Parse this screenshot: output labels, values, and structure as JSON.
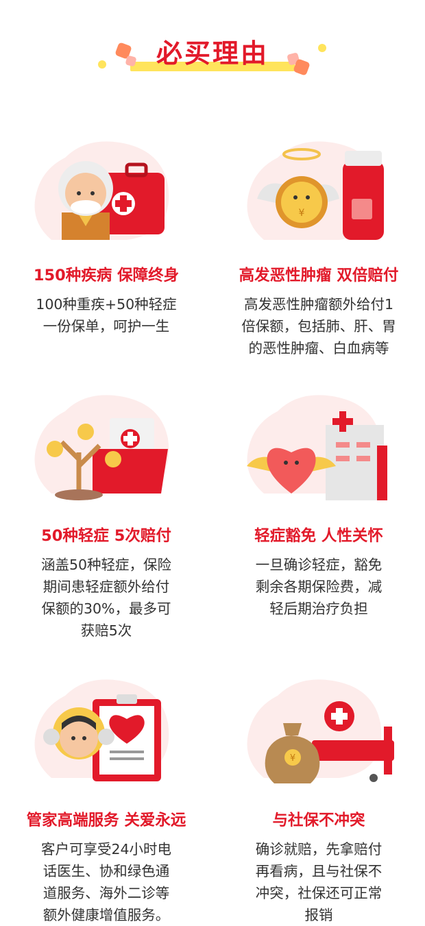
{
  "header": {
    "title": "必买理由"
  },
  "colors": {
    "accent": "#e21a2a",
    "highlight": "#ffe45c",
    "text": "#333333",
    "blob": "#fdeceb"
  },
  "cards": [
    {
      "title": "150种疾病 保障终身",
      "desc": [
        "100种重疾+50种轻症",
        "一份保单，呵护一生"
      ],
      "icon": "elder-with-medkit-icon"
    },
    {
      "title": "高发恶性肿瘤 双倍赔付",
      "desc": [
        "高发恶性肿瘤额外给付1",
        "倍保额，包括肺、肝、胃",
        "的恶性肿瘤、白血病等"
      ],
      "icon": "winged-coin-medicine-icon"
    },
    {
      "title": "50种轻症 5次赔付",
      "desc": [
        "涵盖50种轻症，保险",
        "期间患轻症额外给付",
        "保额的30%，最多可",
        "获赔5次"
      ],
      "icon": "money-tree-folder-icon"
    },
    {
      "title": "轻症豁免 人性关怀",
      "desc": [
        "一旦确诊轻症，豁免",
        "剩余各期保险费，减",
        "轻后期治疗负担"
      ],
      "icon": "winged-heart-hospital-icon"
    },
    {
      "title": "管家高端服务 关爱永远",
      "desc": [
        "客户可享受24小时电",
        "话医生、协和绿色通",
        "道服务、海外二诊等",
        "额外健康增值服务。"
      ],
      "icon": "service-agent-clipboard-icon"
    },
    {
      "title": "与社保不冲突",
      "desc": [
        "确诊就赔，先拿赔付",
        "再看病，且与社保不",
        "冲突，社保还可正常",
        "报销"
      ],
      "icon": "money-bag-hospital-bed-icon"
    }
  ]
}
